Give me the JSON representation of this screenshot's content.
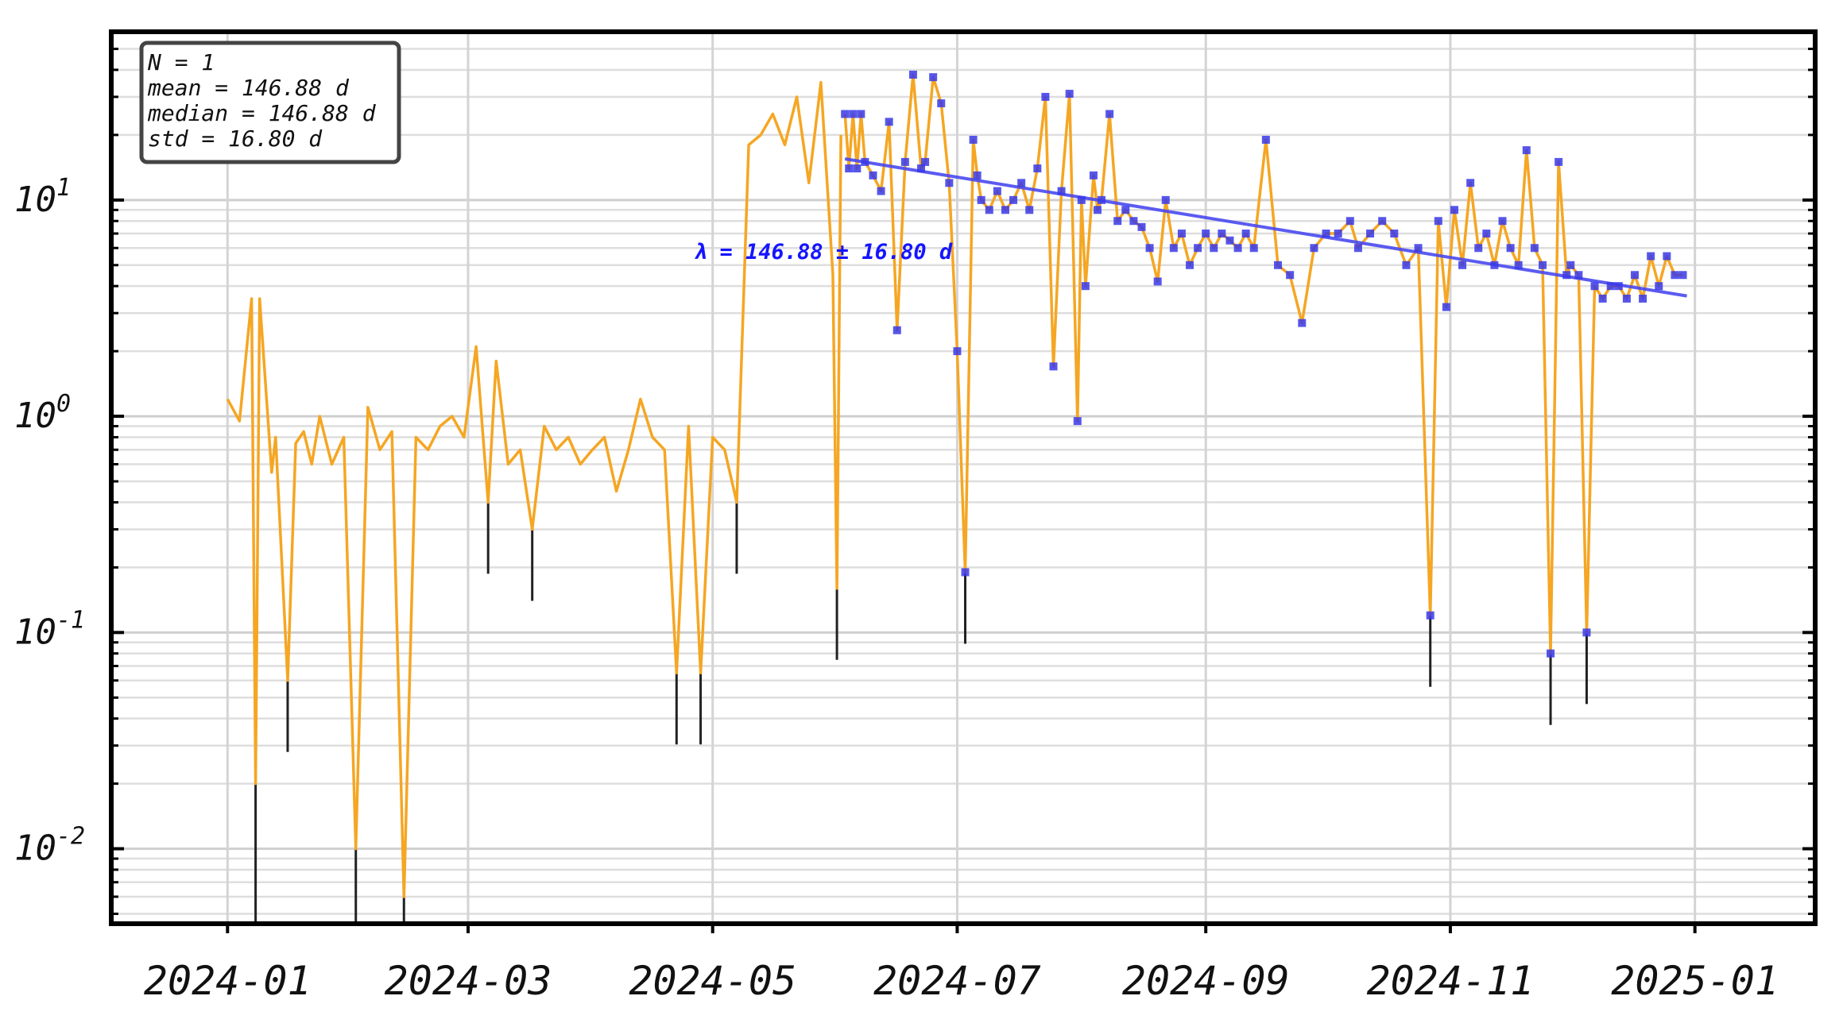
{
  "chart_data": {
    "type": "line",
    "title": "",
    "xlabel": "",
    "ylabel": "",
    "y_scale": "log",
    "ylim": [
      0.0045,
      60
    ],
    "xlim": [
      "2023-12-03",
      "2025-01-31"
    ],
    "grid": true,
    "x_ticks": [
      "2024-01",
      "2024-03",
      "2024-05",
      "2024-07",
      "2024-09",
      "2024-11",
      "2025-01"
    ],
    "y_ticks": [
      {
        "value": 10,
        "base": "10",
        "exp": "1"
      },
      {
        "value": 1,
        "base": "10",
        "exp": "0"
      },
      {
        "value": 0.1,
        "base": "10",
        "exp": "-1"
      },
      {
        "value": 0.01,
        "base": "10",
        "exp": "-2"
      }
    ],
    "stats_box": {
      "lines": [
        "N = 1",
        "mean = 146.88 d",
        "median = 146.88 d",
        "std = 16.80 d"
      ],
      "placement": "top-left"
    },
    "fit_label": "λ = 146.88 ± 16.80 d",
    "fit_line": {
      "x": [
        "2024-06-03",
        "2024-12-30"
      ],
      "y": [
        15.5,
        3.6
      ]
    },
    "colors": {
      "series": "#f5a623",
      "markers": "#3838e8",
      "fit": "#4a4af0",
      "whisker": "#222222",
      "label": "#1515ff"
    },
    "series": [
      {
        "dates": [
          "2024-01-01",
          "2024-01-04",
          "2024-01-07",
          "2024-01-08",
          "2024-01-09",
          "2024-01-12",
          "2024-01-13",
          "2024-01-16",
          "2024-01-18",
          "2024-01-20",
          "2024-01-22",
          "2024-01-24",
          "2024-01-27",
          "2024-01-30",
          "2024-02-02",
          "2024-02-05",
          "2024-02-08",
          "2024-02-11",
          "2024-02-14",
          "2024-02-17",
          "2024-02-20",
          "2024-02-23",
          "2024-02-26",
          "2024-02-29",
          "2024-03-03",
          "2024-03-06",
          "2024-03-08",
          "2024-03-11",
          "2024-03-14",
          "2024-03-17",
          "2024-03-20",
          "2024-03-23",
          "2024-03-26",
          "2024-03-29",
          "2024-04-01",
          "2024-04-04",
          "2024-04-07",
          "2024-04-10",
          "2024-04-13",
          "2024-04-16",
          "2024-04-19",
          "2024-04-22",
          "2024-04-25",
          "2024-04-28",
          "2024-05-01",
          "2024-05-04",
          "2024-05-07",
          "2024-05-10",
          "2024-05-13",
          "2024-05-16",
          "2024-05-19",
          "2024-05-22",
          "2024-05-25",
          "2024-05-28",
          "2024-05-31",
          "2024-06-01",
          "2024-06-02"
        ],
        "values": [
          1.2,
          0.95,
          3.5,
          0.02,
          3.5,
          0.55,
          0.8,
          0.06,
          0.75,
          0.85,
          0.6,
          1.0,
          0.6,
          0.8,
          0.01,
          1.1,
          0.7,
          0.85,
          0.006,
          0.8,
          0.7,
          0.9,
          1.0,
          0.8,
          2.1,
          0.4,
          1.8,
          0.6,
          0.7,
          0.3,
          0.9,
          0.7,
          0.8,
          0.6,
          0.7,
          0.8,
          0.45,
          0.7,
          1.2,
          0.8,
          0.7,
          0.065,
          0.9,
          0.065,
          0.8,
          0.7,
          0.4,
          18,
          20,
          25,
          18,
          30,
          12,
          35,
          4.5,
          0.16,
          20
        ]
      },
      {
        "dates": [
          "2024-06-03",
          "2024-06-04",
          "2024-06-05",
          "2024-06-06",
          "2024-06-07",
          "2024-06-08",
          "2024-06-10",
          "2024-06-12",
          "2024-06-14",
          "2024-06-16",
          "2024-06-18",
          "2024-06-20",
          "2024-06-22",
          "2024-06-23",
          "2024-06-25",
          "2024-06-27",
          "2024-06-29",
          "2024-07-01",
          "2024-07-03",
          "2024-07-05",
          "2024-07-06",
          "2024-07-07",
          "2024-07-09",
          "2024-07-11",
          "2024-07-13",
          "2024-07-15",
          "2024-07-17",
          "2024-07-19",
          "2024-07-21",
          "2024-07-23",
          "2024-07-25",
          "2024-07-27",
          "2024-07-29",
          "2024-07-31",
          "2024-08-01",
          "2024-08-02",
          "2024-08-04",
          "2024-08-05",
          "2024-08-06",
          "2024-08-08",
          "2024-08-10",
          "2024-08-12",
          "2024-08-14",
          "2024-08-16",
          "2024-08-18",
          "2024-08-20",
          "2024-08-22",
          "2024-08-24",
          "2024-08-26",
          "2024-08-28",
          "2024-08-30",
          "2024-09-01",
          "2024-09-03",
          "2024-09-05",
          "2024-09-07",
          "2024-09-09",
          "2024-09-11",
          "2024-09-13",
          "2024-09-16",
          "2024-09-19",
          "2024-09-22",
          "2024-09-25",
          "2024-09-28",
          "2024-10-01",
          "2024-10-04",
          "2024-10-07",
          "2024-10-09",
          "2024-10-12",
          "2024-10-15",
          "2024-10-18",
          "2024-10-21",
          "2024-10-24",
          "2024-10-27",
          "2024-10-29",
          "2024-10-31",
          "2024-11-02",
          "2024-11-04",
          "2024-11-06",
          "2024-11-08",
          "2024-11-10",
          "2024-11-12",
          "2024-11-14",
          "2024-11-16",
          "2024-11-18",
          "2024-11-20",
          "2024-11-22",
          "2024-11-24",
          "2024-11-26",
          "2024-11-28",
          "2024-11-30",
          "2024-12-01",
          "2024-12-03",
          "2024-12-05",
          "2024-12-07",
          "2024-12-09",
          "2024-12-11",
          "2024-12-13",
          "2024-12-15",
          "2024-12-17",
          "2024-12-19",
          "2024-12-21",
          "2024-12-23",
          "2024-12-25",
          "2024-12-27",
          "2024-12-29"
        ],
        "values": [
          25,
          14,
          25,
          14,
          25,
          15,
          13,
          11,
          23,
          2.5,
          15,
          38,
          14,
          15,
          37,
          28,
          12,
          2.0,
          0.19,
          19,
          13,
          10,
          9,
          11,
          9,
          10,
          12,
          9,
          14,
          30,
          1.7,
          11,
          31,
          0.95,
          10,
          4.0,
          13,
          9,
          10,
          25,
          8,
          9,
          8,
          7.5,
          6,
          4.2,
          10,
          6,
          7,
          5,
          6,
          7,
          6,
          7,
          6.5,
          6,
          7,
          6,
          19,
          5,
          4.5,
          2.7,
          6,
          7,
          7,
          8,
          6,
          7,
          8,
          7,
          5,
          6,
          0.12,
          8,
          3.2,
          9,
          5,
          12,
          6,
          7,
          5,
          8,
          6,
          5,
          17,
          6,
          5,
          0.08,
          15,
          4.5,
          5,
          4.5,
          0.1,
          4.0,
          3.5,
          4,
          4,
          3.5,
          4.5,
          3.5,
          5.5,
          4,
          5.5,
          4.5,
          4.5
        ]
      }
    ]
  }
}
